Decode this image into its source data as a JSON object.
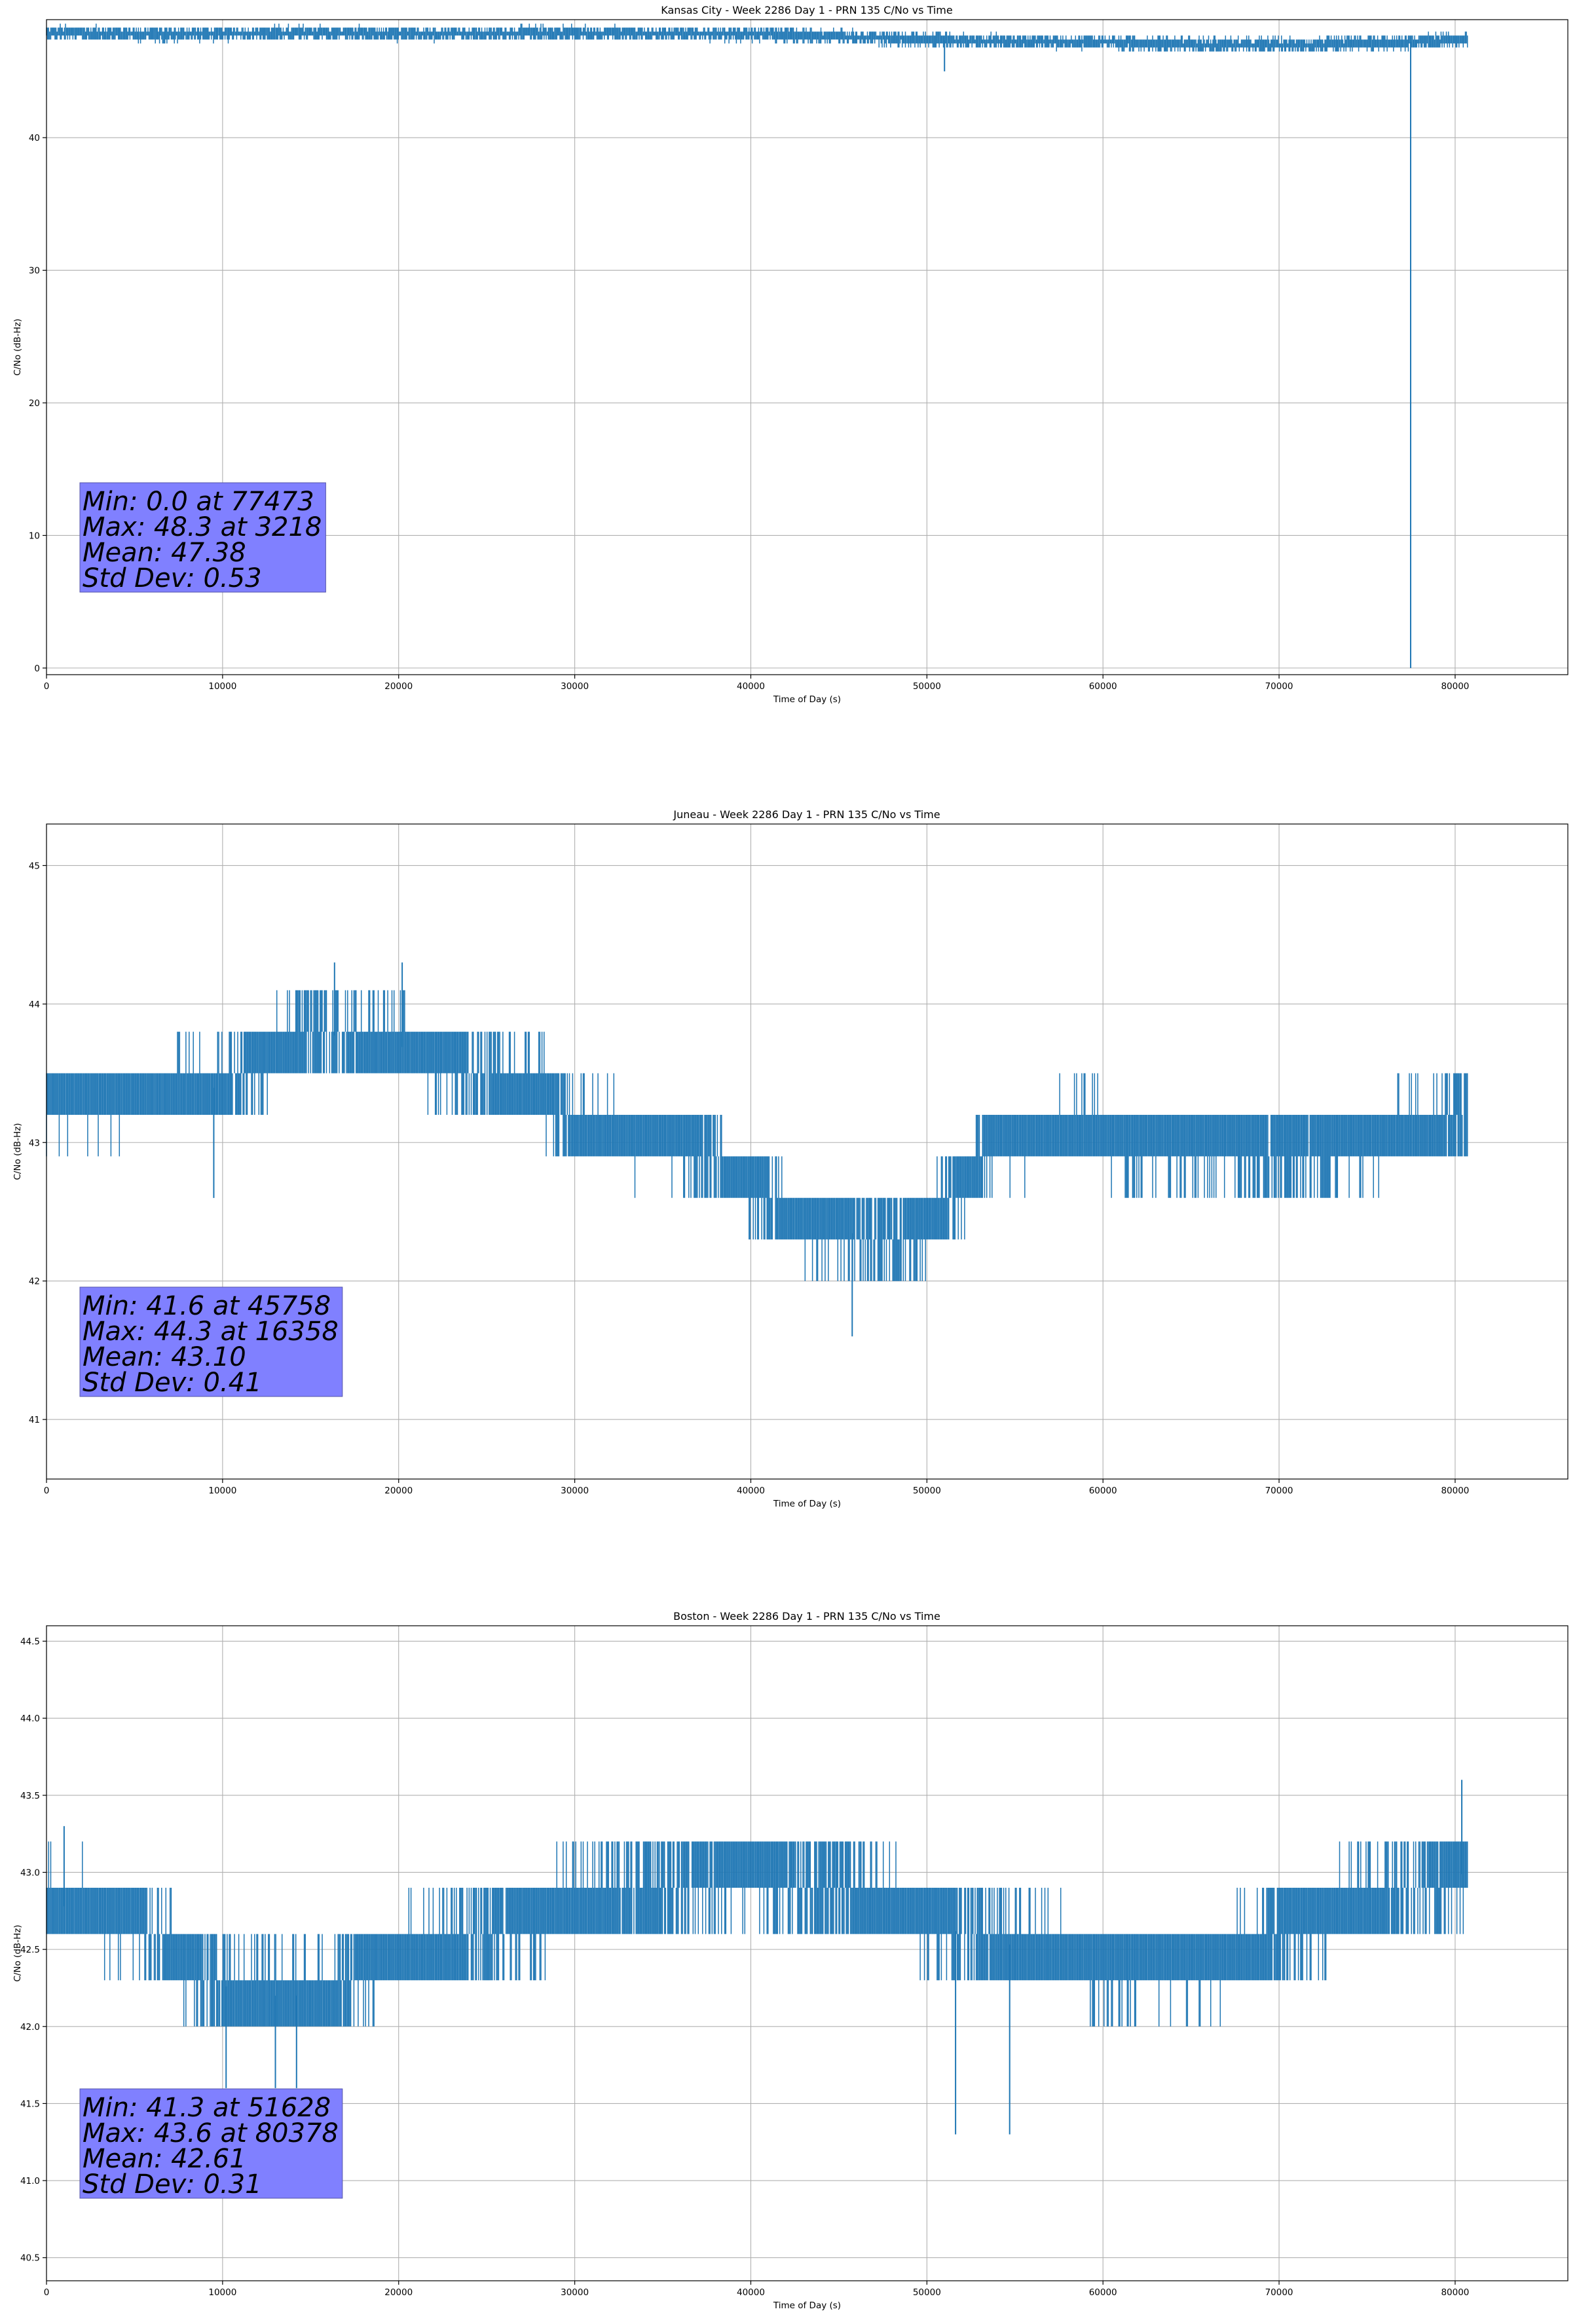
{
  "chart_data": [
    {
      "type": "line",
      "title": "Kansas City - Week 2286 Day 1 - PRN 135 C/No vs Time",
      "xlabel": "Time of Day (s)",
      "ylabel": "C/No (dB-Hz)",
      "xlim": [
        0,
        86400
      ],
      "ylim": [
        -0.5,
        48.9
      ],
      "x_ticks": [
        0,
        10000,
        20000,
        30000,
        40000,
        50000,
        60000,
        70000,
        80000
      ],
      "y_ticks": [
        0,
        10,
        20,
        30,
        40
      ],
      "y_tick_labels": [
        "0",
        "10",
        "20",
        "30",
        "40"
      ],
      "grid": true,
      "series_color": "#1f77b4",
      "series": [
        {
          "profile": [
            [
              0,
              47.9
            ],
            [
              7000,
              47.8
            ],
            [
              16000,
              47.9
            ],
            [
              21000,
              47.8
            ],
            [
              29000,
              47.9
            ],
            [
              40000,
              47.8
            ],
            [
              45000,
              47.6
            ],
            [
              52000,
              47.3
            ],
            [
              60000,
              47.2
            ],
            [
              66000,
              47.0
            ],
            [
              73000,
              47.0
            ],
            [
              77000,
              47.2
            ],
            [
              80700,
              47.4
            ]
          ],
          "spread": 0.6,
          "spikes": [
            [
              3218,
              48.3
            ],
            [
              51000,
              45.0
            ],
            [
              77473,
              0.0
            ]
          ]
        }
      ],
      "stats": {
        "box_color": "#8080ff",
        "lines": [
          "Min: 0.0 at 77473",
          "Max: 48.3 at 3218",
          "Mean: 47.38",
          "Std Dev: 0.53"
        ]
      }
    },
    {
      "type": "line",
      "title": "Juneau - Week 2286 Day 1 - PRN 135 C/No vs Time",
      "xlabel": "Time of Day (s)",
      "ylabel": "C/No (dB-Hz)",
      "xlim": [
        0,
        86400
      ],
      "ylim": [
        40.57,
        45.3
      ],
      "x_ticks": [
        0,
        10000,
        20000,
        30000,
        40000,
        50000,
        60000,
        70000,
        80000
      ],
      "y_ticks": [
        41,
        42,
        43,
        44,
        45
      ],
      "y_tick_labels": [
        "41",
        "42",
        "43",
        "44",
        "45"
      ],
      "grid": true,
      "series_color": "#1f77b4",
      "series": [
        {
          "profile": [
            [
              0,
              43.3
            ],
            [
              10000,
              43.4
            ],
            [
              12000,
              43.6
            ],
            [
              15000,
              43.8
            ],
            [
              20000,
              43.7
            ],
            [
              24000,
              43.5
            ],
            [
              28000,
              43.4
            ],
            [
              30000,
              43.1
            ],
            [
              36000,
              43.0
            ],
            [
              38000,
              42.9
            ],
            [
              40000,
              42.7
            ],
            [
              43000,
              42.4
            ],
            [
              48000,
              42.3
            ],
            [
              50000,
              42.4
            ],
            [
              52000,
              42.7
            ],
            [
              54000,
              43.0
            ],
            [
              58000,
              43.1
            ],
            [
              62000,
              43.0
            ],
            [
              66000,
              43.0
            ],
            [
              70000,
              42.9
            ],
            [
              74000,
              43.0
            ],
            [
              78000,
              43.1
            ],
            [
              80700,
              43.2
            ]
          ],
          "spread": 0.3,
          "spikes": [
            [
              9500,
              42.6
            ],
            [
              16358,
              44.3
            ],
            [
              20200,
              44.3
            ],
            [
              45758,
              41.6
            ]
          ]
        }
      ],
      "stats": {
        "box_color": "#8080ff",
        "lines": [
          "Min: 41.6 at 45758",
          "Max: 44.3 at 16358",
          "Mean: 43.10",
          "Std Dev: 0.41"
        ]
      }
    },
    {
      "type": "line",
      "title": "Boston - Week 2286 Day 1 - PRN 135 C/No vs Time",
      "xlabel": "Time of Day (s)",
      "ylabel": "C/No (dB-Hz)",
      "xlim": [
        0,
        86400
      ],
      "ylim": [
        40.35,
        44.6
      ],
      "x_ticks": [
        0,
        10000,
        20000,
        30000,
        40000,
        50000,
        60000,
        70000,
        80000
      ],
      "y_ticks": [
        40.5,
        41.0,
        41.5,
        42.0,
        42.5,
        43.0,
        43.5,
        44.0,
        44.5
      ],
      "y_tick_labels": [
        "40.5",
        "41.0",
        "41.5",
        "42.0",
        "42.5",
        "43.0",
        "43.5",
        "44.0",
        "44.5"
      ],
      "grid": true,
      "series_color": "#1f77b4",
      "series": [
        {
          "profile": [
            [
              0,
              42.8
            ],
            [
              5000,
              42.7
            ],
            [
              7000,
              42.5
            ],
            [
              9000,
              42.3
            ],
            [
              12000,
              42.2
            ],
            [
              16000,
              42.2
            ],
            [
              18000,
              42.4
            ],
            [
              22000,
              42.5
            ],
            [
              25000,
              42.6
            ],
            [
              30000,
              42.8
            ],
            [
              35000,
              42.9
            ],
            [
              40000,
              43.0
            ],
            [
              44000,
              42.9
            ],
            [
              48000,
              42.8
            ],
            [
              52000,
              42.6
            ],
            [
              60000,
              42.4
            ],
            [
              66000,
              42.4
            ],
            [
              70000,
              42.6
            ],
            [
              74000,
              42.8
            ],
            [
              78000,
              42.9
            ],
            [
              80700,
              43.0
            ]
          ],
          "spread": 0.3,
          "spikes": [
            [
              1000,
              43.3
            ],
            [
              10200,
              41.6
            ],
            [
              13000,
              41.6
            ],
            [
              14200,
              41.6
            ],
            [
              51628,
              41.3
            ],
            [
              54700,
              41.3
            ],
            [
              80378,
              43.6
            ]
          ]
        }
      ],
      "stats": {
        "box_color": "#8080ff",
        "lines": [
          "Min: 41.3 at 51628",
          "Max: 43.6 at 80378",
          "Mean: 42.61",
          "Std Dev: 0.31"
        ]
      }
    }
  ]
}
